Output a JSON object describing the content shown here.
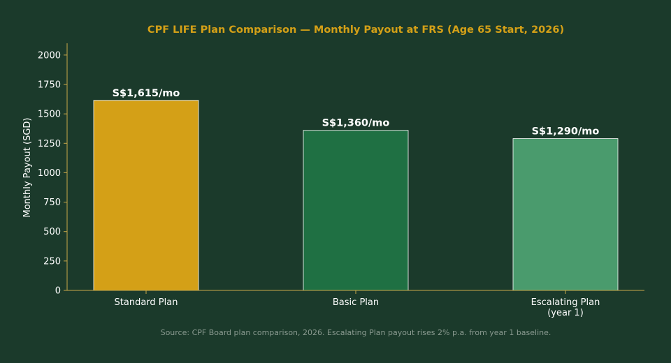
{
  "chart_data": {
    "type": "bar",
    "title": "CPF LIFE Plan Comparison — Monthly Payout at FRS (Age 65 Start, 2026)",
    "xlabel": "",
    "ylabel": "Monthly Payout (SGD)",
    "categories": [
      [
        "Standard Plan"
      ],
      [
        "Basic Plan"
      ],
      [
        "Escalating Plan",
        "(year 1)"
      ]
    ],
    "values": [
      1615,
      1360,
      1290
    ],
    "data_labels": [
      "S$1,615/mo",
      "S$1,360/mo",
      "S$1,290/mo"
    ],
    "bar_colors": [
      "#d4a017",
      "#1f7043",
      "#4a9b6d"
    ],
    "ylim": [
      0,
      2100
    ],
    "yticks": [
      0,
      250,
      500,
      750,
      1000,
      1250,
      1500,
      1750,
      2000
    ],
    "grid": false,
    "legend": "none"
  },
  "caption": "Source: CPF Board plan comparison, 2026. Escalating Plan payout rises 2% p.a. from year 1 baseline.",
  "colors": {
    "background": "#1b3a2b",
    "axis": "#c8a84a",
    "title": "#d4a017",
    "text": "#ffffff",
    "caption": "#8a9a90"
  }
}
